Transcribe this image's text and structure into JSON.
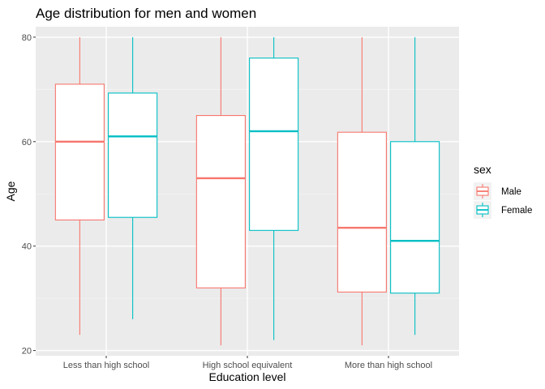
{
  "chart_data": {
    "type": "boxplot",
    "title": "Age distribution for men and women",
    "xlabel": "Education level",
    "ylabel": "Age",
    "categories": [
      "Less than high school",
      "High school equivalent",
      "More than high school"
    ],
    "yticks": [
      20,
      40,
      60,
      80
    ],
    "ylim": [
      19,
      82
    ],
    "grid": true,
    "legend": {
      "title": "sex",
      "position": "right"
    },
    "series": [
      {
        "name": "Male",
        "color": "#F8766D",
        "boxes": [
          {
            "min": 23,
            "q1": 45,
            "median": 60,
            "q3": 71,
            "max": 80
          },
          {
            "min": 21,
            "q1": 32,
            "median": 53,
            "q3": 65,
            "max": 80
          },
          {
            "min": 21,
            "q1": 31.2,
            "median": 43.5,
            "q3": 61.8,
            "max": 80
          }
        ]
      },
      {
        "name": "Female",
        "color": "#00BFC4",
        "boxes": [
          {
            "min": 26,
            "q1": 45.5,
            "median": 61,
            "q3": 69.3,
            "max": 80
          },
          {
            "min": 22,
            "q1": 43,
            "median": 62,
            "q3": 76,
            "max": 80
          },
          {
            "min": 23,
            "q1": 31,
            "median": 41,
            "q3": 60,
            "max": 80
          }
        ]
      }
    ]
  }
}
